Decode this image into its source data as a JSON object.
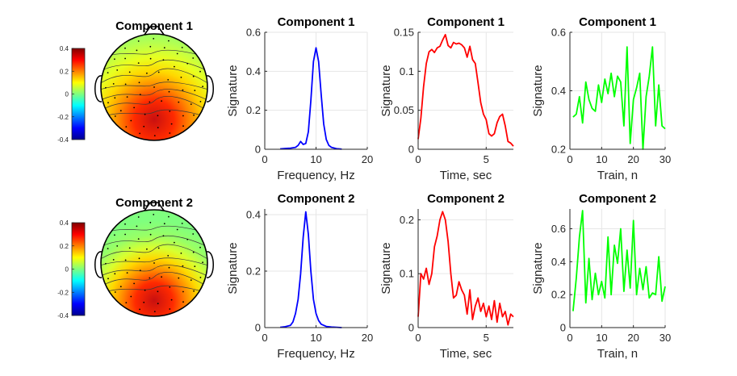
{
  "chart_data": [
    {
      "type": "topoplot",
      "title": "Component 1",
      "colorbar": {
        "ticks": [
          "0.4",
          "0.2",
          "0",
          "-0.2",
          "-0.4"
        ],
        "range": [
          -0.4,
          0.4
        ],
        "colormap": "jet"
      },
      "pattern": "positive posterior (occipital) maximum, near zero frontal"
    },
    {
      "type": "line",
      "title": "Component 1",
      "xlabel": "Frequency, Hz",
      "ylabel": "Signature",
      "xlim": [
        0,
        20
      ],
      "ylim": [
        0,
        0.6
      ],
      "xticks": [
        "0",
        "10",
        "20"
      ],
      "yticks": [
        "0",
        "0.2",
        "0.4",
        "0.6"
      ],
      "grid": true,
      "color": "#0000ff",
      "series": [
        {
          "x": [
            3,
            4,
            5,
            6,
            6.5,
            7,
            7.5,
            8,
            8.5,
            9,
            9.5,
            10,
            10.5,
            11,
            11.5,
            12,
            12.5,
            13,
            14,
            15
          ],
          "y": [
            0.002,
            0.004,
            0.006,
            0.01,
            0.02,
            0.04,
            0.025,
            0.03,
            0.09,
            0.25,
            0.45,
            0.52,
            0.45,
            0.28,
            0.13,
            0.05,
            0.02,
            0.01,
            0.003,
            0.001
          ]
        }
      ]
    },
    {
      "type": "line",
      "title": "Component 1",
      "xlabel": "Time, sec",
      "ylabel": "Signature",
      "xlim": [
        0,
        7
      ],
      "ylim": [
        0,
        0.15
      ],
      "xticks": [
        "0",
        "5"
      ],
      "yticks": [
        "0",
        "0.05",
        "0.1",
        "0.15"
      ],
      "grid": true,
      "color": "#ff0000",
      "series": [
        {
          "x": [
            0,
            0.2,
            0.4,
            0.6,
            0.8,
            1,
            1.2,
            1.4,
            1.6,
            1.8,
            2,
            2.2,
            2.4,
            2.6,
            2.8,
            3,
            3.2,
            3.4,
            3.6,
            3.8,
            4,
            4.2,
            4.4,
            4.6,
            4.8,
            5,
            5.2,
            5.4,
            5.6,
            5.8,
            6,
            6.2,
            6.4,
            6.6,
            6.8,
            7
          ],
          "y": [
            0.013,
            0.04,
            0.08,
            0.11,
            0.125,
            0.128,
            0.124,
            0.13,
            0.132,
            0.14,
            0.147,
            0.133,
            0.13,
            0.137,
            0.135,
            0.136,
            0.134,
            0.13,
            0.118,
            0.132,
            0.115,
            0.11,
            0.085,
            0.06,
            0.045,
            0.038,
            0.02,
            0.017,
            0.02,
            0.034,
            0.042,
            0.045,
            0.03,
            0.01,
            0.008,
            0.004
          ]
        }
      ]
    },
    {
      "type": "line",
      "title": "Component 1",
      "xlabel": "Train, n",
      "ylabel": "Signature",
      "xlim": [
        0,
        30
      ],
      "ylim": [
        0.2,
        0.6
      ],
      "xticks": [
        "0",
        "10",
        "20",
        "30"
      ],
      "yticks": [
        "0.2",
        "0.4",
        "0.6"
      ],
      "grid": true,
      "color": "#00ff00",
      "series": [
        {
          "x": [
            1,
            2,
            3,
            4,
            5,
            6,
            7,
            8,
            9,
            10,
            11,
            12,
            13,
            14,
            15,
            16,
            17,
            18,
            19,
            20,
            21,
            22,
            23,
            24,
            25,
            26,
            27,
            28,
            29,
            30
          ],
          "y": [
            0.31,
            0.32,
            0.38,
            0.29,
            0.43,
            0.37,
            0.34,
            0.33,
            0.42,
            0.36,
            0.44,
            0.39,
            0.46,
            0.38,
            0.45,
            0.43,
            0.28,
            0.55,
            0.22,
            0.37,
            0.41,
            0.46,
            0.2,
            0.38,
            0.45,
            0.55,
            0.28,
            0.42,
            0.28,
            0.27
          ]
        }
      ]
    },
    {
      "type": "topoplot",
      "title": "Component 2",
      "colorbar": {
        "ticks": [
          "0.4",
          "0.2",
          "0",
          "-0.2",
          "-0.4"
        ],
        "range": [
          -0.4,
          0.4
        ],
        "colormap": "jet"
      },
      "pattern": "positive posterior maximum, near zero frontal"
    },
    {
      "type": "line",
      "title": "Component 2",
      "xlabel": "Frequency, Hz",
      "ylabel": "Signature",
      "xlim": [
        0,
        20
      ],
      "ylim": [
        0,
        0.42
      ],
      "xticks": [
        "0",
        "10",
        "20"
      ],
      "yticks": [
        "0",
        "0.2",
        "0.4"
      ],
      "grid": true,
      "color": "#0000ff",
      "series": [
        {
          "x": [
            3,
            4,
            5,
            5.5,
            6,
            6.5,
            7,
            7.5,
            8,
            8.5,
            9,
            9.5,
            10,
            10.5,
            11,
            12,
            13,
            14,
            15
          ],
          "y": [
            0.001,
            0.003,
            0.008,
            0.02,
            0.05,
            0.1,
            0.19,
            0.32,
            0.41,
            0.33,
            0.2,
            0.1,
            0.05,
            0.025,
            0.012,
            0.004,
            0.002,
            0.001,
            0.0
          ]
        }
      ]
    },
    {
      "type": "line",
      "title": "Component 2",
      "xlabel": "Time, sec",
      "ylabel": "Signature",
      "xlim": [
        0,
        7
      ],
      "ylim": [
        0,
        0.22
      ],
      "xticks": [
        "0",
        "5"
      ],
      "yticks": [
        "0",
        "0.1",
        "0.2"
      ],
      "grid": true,
      "color": "#ff0000",
      "series": [
        {
          "x": [
            0,
            0.2,
            0.4,
            0.6,
            0.8,
            1,
            1.2,
            1.4,
            1.6,
            1.8,
            2,
            2.2,
            2.4,
            2.6,
            2.8,
            3,
            3.2,
            3.4,
            3.6,
            3.8,
            4,
            4.2,
            4.4,
            4.6,
            4.8,
            5,
            5.2,
            5.4,
            5.6,
            5.8,
            6,
            6.2,
            6.4,
            6.6,
            6.8,
            7
          ],
          "y": [
            0.02,
            0.1,
            0.09,
            0.11,
            0.08,
            0.1,
            0.15,
            0.17,
            0.2,
            0.215,
            0.2,
            0.16,
            0.1,
            0.055,
            0.06,
            0.085,
            0.07,
            0.06,
            0.025,
            0.07,
            0.015,
            0.04,
            0.055,
            0.03,
            0.045,
            0.02,
            0.04,
            0.015,
            0.05,
            0.01,
            0.045,
            0.02,
            0.03,
            0.005,
            0.025,
            0.02
          ]
        }
      ]
    },
    {
      "type": "line",
      "title": "Component 2",
      "xlabel": "Train, n",
      "ylabel": "Signature",
      "xlim": [
        0,
        30
      ],
      "ylim": [
        0,
        0.72
      ],
      "xticks": [
        "0",
        "10",
        "20",
        "30"
      ],
      "yticks": [
        "0",
        "0.2",
        "0.4",
        "0.6"
      ],
      "grid": true,
      "color": "#00ff00",
      "series": [
        {
          "x": [
            1,
            2,
            3,
            4,
            5,
            6,
            7,
            8,
            9,
            10,
            11,
            12,
            13,
            14,
            15,
            16,
            17,
            18,
            19,
            20,
            21,
            22,
            23,
            24,
            25,
            26,
            27,
            28,
            29,
            30
          ],
          "y": [
            0.1,
            0.3,
            0.55,
            0.71,
            0.15,
            0.42,
            0.17,
            0.33,
            0.2,
            0.28,
            0.18,
            0.55,
            0.2,
            0.5,
            0.39,
            0.6,
            0.22,
            0.47,
            0.24,
            0.65,
            0.2,
            0.36,
            0.23,
            0.37,
            0.18,
            0.21,
            0.2,
            0.43,
            0.16,
            0.25
          ]
        }
      ]
    }
  ]
}
